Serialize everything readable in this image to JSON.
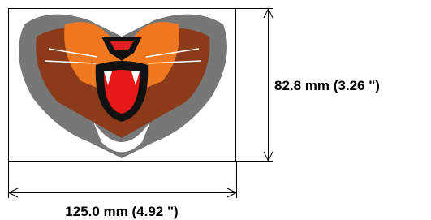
{
  "dimensions": {
    "height": "82.8 mm (3.26 \")",
    "width": "125.0 mm (4.92 \")"
  }
}
